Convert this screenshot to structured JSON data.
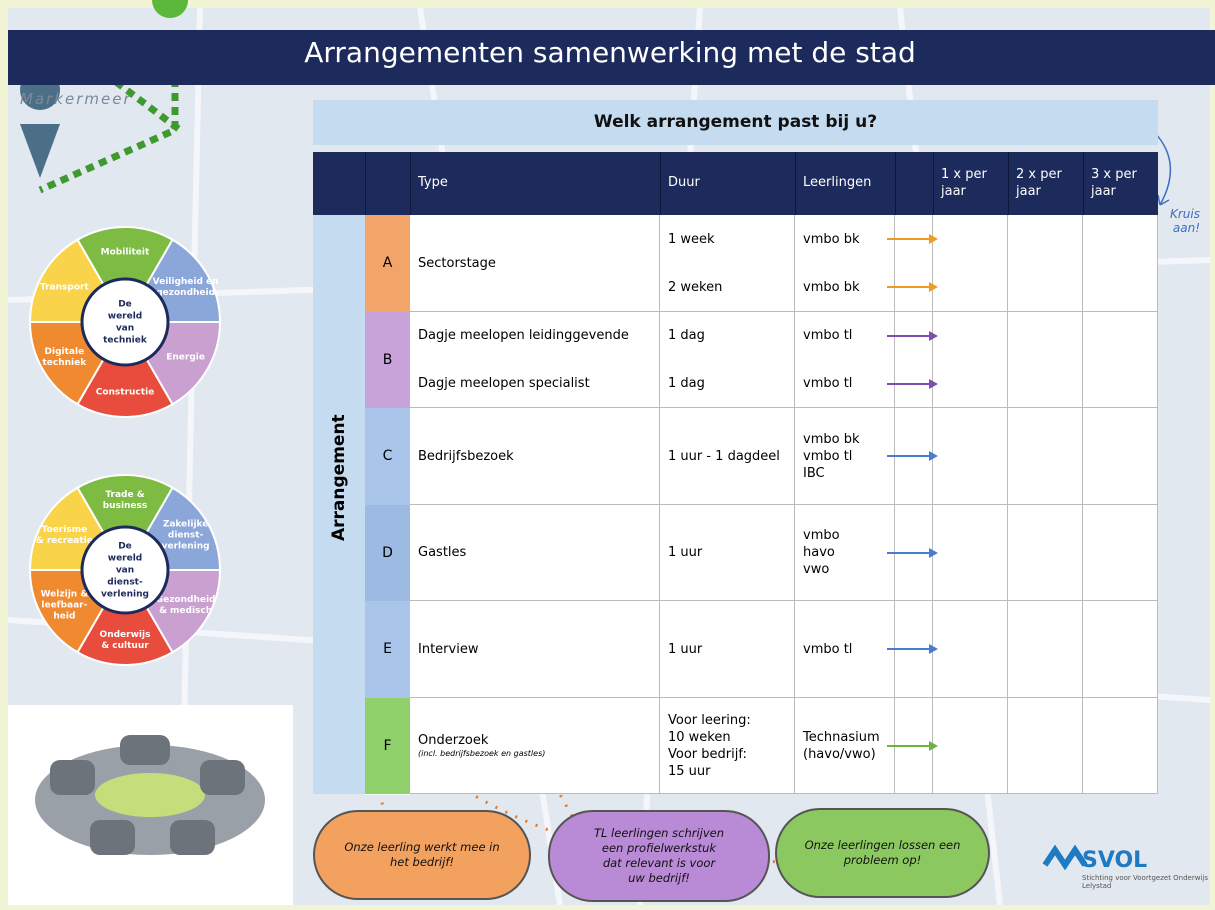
{
  "header": {
    "title": "Arrangementen samenwerking met de stad",
    "map_label": "Markermeer"
  },
  "question": "Welk arrangement past bij u?",
  "side_note": [
    "Kruis",
    "aan!"
  ],
  "table": {
    "side_label": "Arrangement",
    "headers": {
      "type": "Type",
      "duur": "Duur",
      "leerlingen": "Leerlingen",
      "freq": [
        [
          "1 x per",
          "jaar"
        ],
        [
          "2 x per",
          "jaar"
        ],
        [
          "3 x per",
          "jaar"
        ]
      ]
    },
    "rows": [
      {
        "letter": "A",
        "color": "#f2a469",
        "arrow_color": "#f29a1f",
        "type": "Sectorstage",
        "lines": [
          {
            "duur": [
              "1 week"
            ],
            "leerlingen": [
              "vmbo bk"
            ]
          },
          {
            "duur": [
              "2 weken"
            ],
            "leerlingen": [
              "vmbo bk"
            ]
          }
        ]
      },
      {
        "letter": "B",
        "color": "#c7a3d9",
        "arrow_color": "#7a4fb0",
        "lines": [
          {
            "type": "Dagje meelopen leidinggevende",
            "duur": [
              "1 dag"
            ],
            "leerlingen": [
              "vmbo tl"
            ]
          },
          {
            "type": "Dagje meelopen specialist",
            "duur": [
              "1 dag"
            ],
            "leerlingen": [
              "vmbo tl"
            ]
          }
        ]
      },
      {
        "letter": "C",
        "color": "#a9c5ea",
        "arrow_color": "#4a7bd0",
        "type": "Bedrijfsbezoek",
        "lines": [
          {
            "duur": [
              "1 uur - 1 dagdeel"
            ],
            "leerlingen": [
              "vmbo bk",
              "vmbo tl",
              "IBC"
            ]
          }
        ]
      },
      {
        "letter": "D",
        "color": "#9dbae2",
        "arrow_color": "#4a7bd0",
        "type": "Gastles",
        "lines": [
          {
            "duur": [
              "1 uur"
            ],
            "leerlingen": [
              "vmbo",
              "havo",
              "vwo"
            ]
          }
        ]
      },
      {
        "letter": "E",
        "color": "#a9c5ea",
        "arrow_color": "#4a7bd0",
        "type": "Interview",
        "lines": [
          {
            "duur": [
              "1 uur"
            ],
            "leerlingen": [
              "vmbo tl"
            ]
          }
        ]
      },
      {
        "letter": "F",
        "color": "#8fd06b",
        "arrow_color": "#6cb33f",
        "type": "Onderzoek",
        "type_note": "(incl. bedrijfsbezoek en gastles)",
        "lines": [
          {
            "duur": [
              "Voor leering:",
              "10 weken",
              "Voor bedrijf:",
              "15 uur"
            ],
            "leerlingen": [
              "Technasium",
              "(havo/vwo)"
            ]
          }
        ]
      }
    ]
  },
  "wheels": [
    {
      "center": [
        "De",
        "wereld",
        "van",
        "techniek"
      ],
      "segments": [
        {
          "label": [
            "Mobiliteit"
          ],
          "color": "#7dbb42"
        },
        {
          "label": [
            "Veiligheid en",
            "gezondheid"
          ],
          "color": "#8ba6d8"
        },
        {
          "label": [
            "Energie"
          ],
          "color": "#c9a0d0"
        },
        {
          "label": [
            "Constructie"
          ],
          "color": "#e84c3d"
        },
        {
          "label": [
            "Digitale",
            "techniek"
          ],
          "color": "#f08a30"
        },
        {
          "label": [
            "Transport"
          ],
          "color": "#f9d44a"
        }
      ]
    },
    {
      "center": [
        "De",
        "wereld",
        "van",
        "dienst-",
        "verlening"
      ],
      "segments": [
        {
          "label": [
            "Trade &",
            "business"
          ],
          "color": "#7dbb42"
        },
        {
          "label": [
            "Zakelijke",
            "dienst-",
            "verlening"
          ],
          "color": "#8ba6d8"
        },
        {
          "label": [
            "Gezondheid",
            "& medisch"
          ],
          "color": "#c9a0d0"
        },
        {
          "label": [
            "Onderwijs",
            "& cultuur"
          ],
          "color": "#e84c3d"
        },
        {
          "label": [
            "Welzijn &",
            "leefbaar-",
            "heid"
          ],
          "color": "#f08a30"
        },
        {
          "label": [
            "Toerisme",
            "& recreatie"
          ],
          "color": "#f9d44a"
        }
      ]
    }
  ],
  "bubbles": [
    {
      "text": [
        "Onze leerling werkt mee in",
        "het bedrijf!"
      ],
      "color": "#f2a15e"
    },
    {
      "text": [
        "TL leerlingen schrijven",
        "een profielwerkstuk",
        "dat relevant is voor",
        "uw bedrijf!"
      ],
      "color": "#b98ad6"
    },
    {
      "text": [
        "Onze leerlingen lossen een",
        "probleem op!"
      ],
      "color": "#8cc860"
    }
  ],
  "logo": {
    "name": "SVOL",
    "subtitle": [
      "Stichting voor Voortgezet Onderwijs",
      "Lelystad"
    ]
  }
}
